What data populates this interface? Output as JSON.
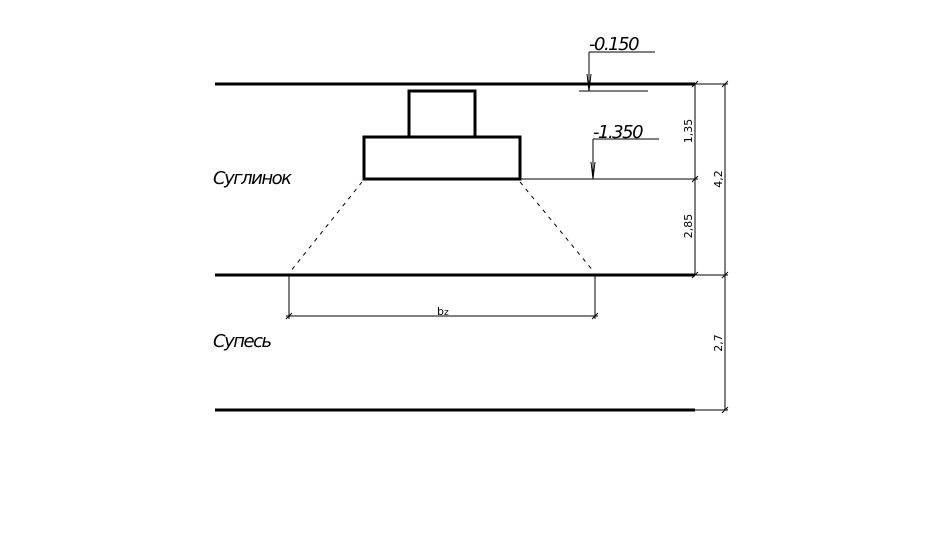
{
  "elevations": {
    "top": "-0.150",
    "base": "-1.350"
  },
  "soils": [
    "Суглинок",
    "Супесь"
  ],
  "width_label": {
    "main": "b",
    "sub": "z"
  },
  "dimensions": {
    "depth_to_base": "1,35",
    "below_base": "2,85",
    "layer1": "4,2",
    "layer2": "2,7"
  }
}
